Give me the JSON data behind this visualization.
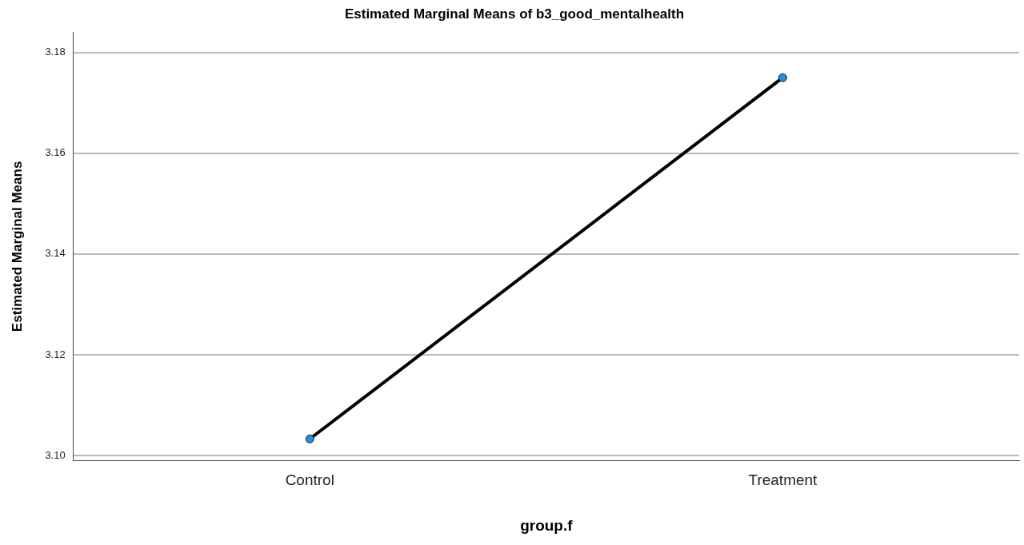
{
  "chart_data": {
    "type": "line",
    "title": "Estimated Marginal Means of b3_good_mentalhealth",
    "xlabel": "group.f",
    "ylabel": "Estimated Marginal Means",
    "categories": [
      "Control",
      "Treatment"
    ],
    "series": [
      {
        "color": "#1f8fe0",
        "values": [
          3.1033,
          3.175
        ]
      }
    ],
    "ylim": [
      3.099,
      3.184
    ],
    "yticks": [
      {
        "value": 3.1,
        "label": "3.10"
      },
      3.12,
      3.14,
      3.16,
      3.18
    ],
    "grid": "y",
    "legend": false,
    "marker": "circle",
    "line_style": "solid"
  }
}
